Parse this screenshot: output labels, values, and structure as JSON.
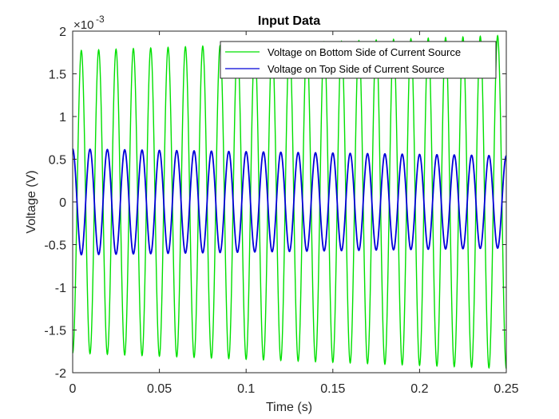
{
  "chart_data": {
    "type": "line",
    "title": "Input Data",
    "xlabel": "Time (s)",
    "ylabel": "Voltage (V)",
    "y_multiplier_label": "×10",
    "y_multiplier_exponent": "-3",
    "xlim": [
      0,
      0.25
    ],
    "ylim": [
      -0.002,
      0.002
    ],
    "x_ticks": [
      0,
      0.05,
      0.1,
      0.15,
      0.2,
      0.25
    ],
    "x_tick_labels": [
      "0",
      "0.05",
      "0.1",
      "0.15",
      "0.2",
      "0.25"
    ],
    "y_ticks": [
      -0.002,
      -0.0015,
      -0.001,
      -0.0005,
      0,
      0.0005,
      0.001,
      0.0015,
      0.002
    ],
    "y_tick_labels": [
      "-2",
      "-1.5",
      "-1",
      "-0.5",
      "0",
      "0.5",
      "1",
      "1.5",
      "2"
    ],
    "grid": false,
    "legend_position": "top-right",
    "series": [
      {
        "name": "Voltage on Bottom Side of Current Source",
        "color": "#00e000",
        "waveform": "sine",
        "frequency_hz": 100,
        "amplitude_start": 0.00177,
        "amplitude_end": 0.00195,
        "offset": 0
      },
      {
        "name": "Voltage on Top Side of Current Source",
        "color": "#0000d8",
        "waveform": "sine",
        "frequency_hz": 100,
        "amplitude_start": 0.00062,
        "amplitude_end": 0.00054,
        "offset": 0
      }
    ]
  }
}
